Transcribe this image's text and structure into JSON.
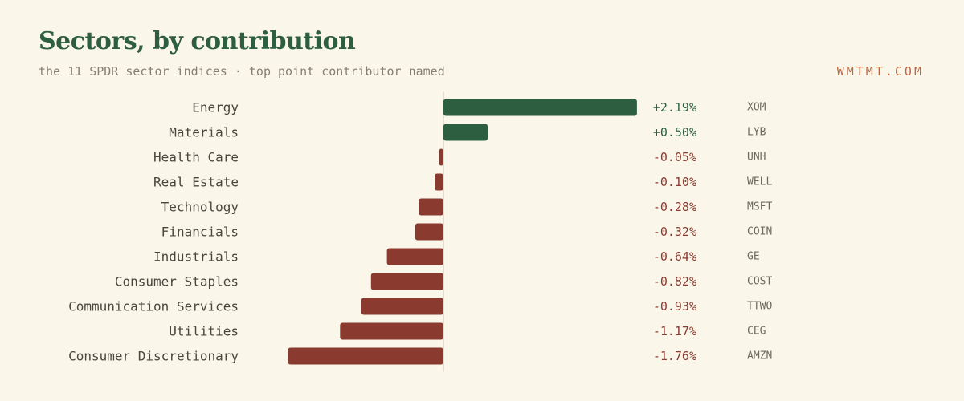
{
  "header": {
    "title": "Sectors, by contribution",
    "subtitle": "the 11 SPDR sector indices · top point contributor named",
    "brand": "WMTMT.COM"
  },
  "colors": {
    "background": "#faf7ea",
    "positive": "#2d5e40",
    "negative": "#8b3a2f",
    "brand": "#c0673f",
    "zero_line": "#c9c3b3"
  },
  "chart_data": {
    "type": "bar",
    "orientation": "horizontal",
    "title": "Sectors, by contribution",
    "subtitle": "the 11 SPDR sector indices · top point contributor named",
    "unit": "%",
    "categories": [
      "Energy",
      "Materials",
      "Health Care",
      "Real Estate",
      "Technology",
      "Financials",
      "Industrials",
      "Consumer Staples",
      "Communication Services",
      "Utilities",
      "Consumer Discretionary"
    ],
    "values": [
      2.19,
      0.5,
      -0.05,
      -0.1,
      -0.28,
      -0.32,
      -0.64,
      -0.82,
      -0.93,
      -1.17,
      -1.76
    ],
    "value_labels": [
      "+2.19%",
      "+0.50%",
      "-0.05%",
      "-0.10%",
      "-0.28%",
      "-0.32%",
      "-0.64%",
      "-0.82%",
      "-0.93%",
      "-1.17%",
      "-1.76%"
    ],
    "top_contributors": [
      "XOM",
      "LYB",
      "UNH",
      "WELL",
      "MSFT",
      "COIN",
      "GE",
      "COST",
      "TTWO",
      "CEG",
      "AMZN"
    ],
    "xlim": [
      -1.76,
      2.19
    ],
    "zero_line": true,
    "grid": false,
    "legend": "none"
  }
}
